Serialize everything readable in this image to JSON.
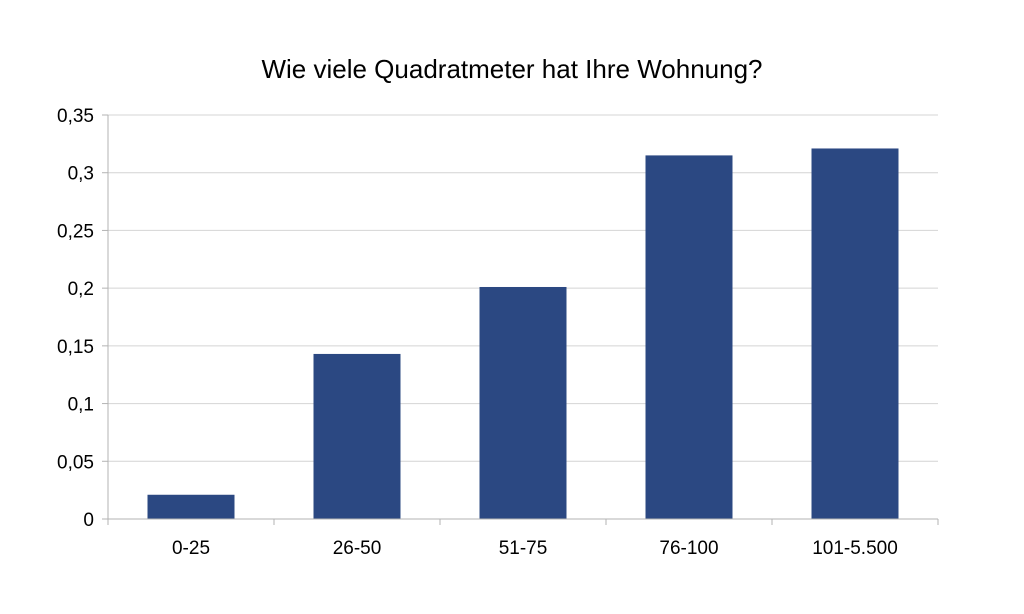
{
  "chart_data": {
    "type": "bar",
    "title": "Wie viele Quadratmeter hat Ihre Wohnung?",
    "categories": [
      "0-25",
      "26-50",
      "51-75",
      "76-100",
      "101-5.500"
    ],
    "values": [
      0.021,
      0.143,
      0.201,
      0.315,
      0.321
    ],
    "ylim": [
      0,
      0.35
    ],
    "yticks": [
      0,
      0.05,
      0.1,
      0.15,
      0.2,
      0.25,
      0.3,
      0.35
    ],
    "ytick_labels": [
      "0",
      "0,05",
      "0,1",
      "0,15",
      "0,2",
      "0,25",
      "0,3",
      "0,35"
    ],
    "xlabel": "",
    "ylabel": "",
    "grid": true,
    "legend": "none",
    "colors": {
      "bar": "#2b4882",
      "grid": "#d4d4d4",
      "axis": "#b3b3b3"
    }
  }
}
